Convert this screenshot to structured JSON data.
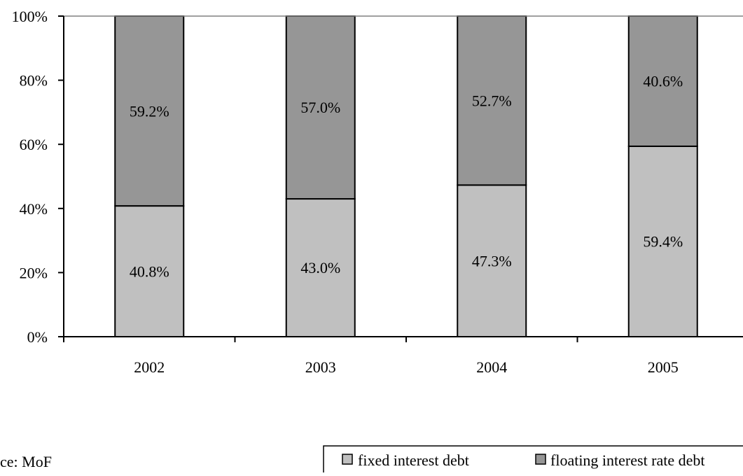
{
  "chart_data": {
    "type": "bar",
    "stacked": true,
    "percent_stacked": true,
    "categories": [
      "2002",
      "2003",
      "2004",
      "2005"
    ],
    "series": [
      {
        "name": "fixed interest debt",
        "values": [
          40.8,
          43.0,
          47.3,
          59.4
        ],
        "labels": [
          "40.8%",
          "43.0%",
          "47.3%",
          "59.4%"
        ],
        "color": "#c0c0c0"
      },
      {
        "name": "floating interest rate debt",
        "values": [
          59.2,
          57.0,
          52.7,
          40.6
        ],
        "labels": [
          "59.2%",
          "57.0%",
          "52.7%",
          "40.6%"
        ],
        "color": "#969696"
      }
    ],
    "ylim": [
      0,
      100
    ],
    "yticks": [
      "0%",
      "20%",
      "40%",
      "60%",
      "80%",
      "100%"
    ],
    "title": "",
    "xlabel": "",
    "ylabel": "",
    "grid": false,
    "legend_position": "bottom-right"
  },
  "source_note": "ce: MoF",
  "colors": {
    "axis": "#000000",
    "top_gridline": "#808080",
    "bar_outline": "#000000"
  }
}
